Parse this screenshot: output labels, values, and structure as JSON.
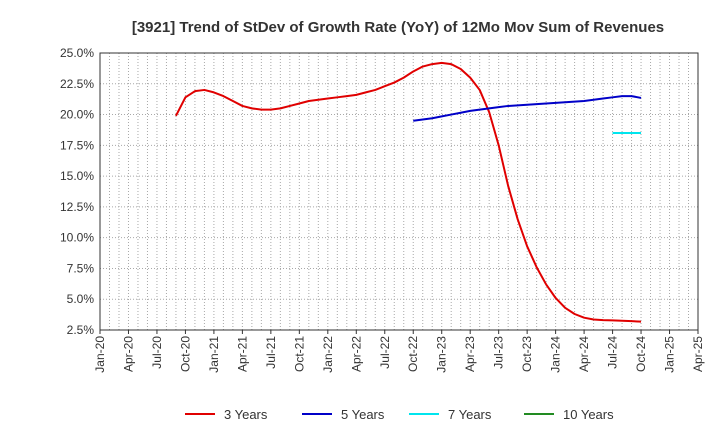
{
  "chart_data": {
    "type": "line",
    "title": "[3921]  Trend of StDev of Growth Rate (YoY) of 12Mo Mov Sum of Revenues",
    "xlabel": "",
    "ylabel": "",
    "ylim": [
      2.5,
      25.0
    ],
    "grid": true,
    "legend_position": "bottom",
    "y_ticks": [
      "2.5%",
      "5.0%",
      "7.5%",
      "10.0%",
      "12.5%",
      "15.0%",
      "17.5%",
      "20.0%",
      "22.5%",
      "25.0%"
    ],
    "x_ticks": [
      "Jan-20",
      "Apr-20",
      "Jul-20",
      "Oct-20",
      "Jan-21",
      "Apr-21",
      "Jul-21",
      "Oct-21",
      "Jan-22",
      "Apr-22",
      "Jul-22",
      "Oct-22",
      "Jan-23",
      "Apr-23",
      "Jul-23",
      "Oct-23",
      "Jan-24",
      "Apr-24",
      "Jul-24",
      "Oct-24",
      "Jan-25",
      "Apr-25"
    ],
    "series": [
      {
        "name": "3 Years",
        "color": "#e00000",
        "points": [
          [
            8,
            19.9
          ],
          [
            9,
            21.4
          ],
          [
            10,
            21.9
          ],
          [
            11,
            22.0
          ],
          [
            12,
            21.8
          ],
          [
            13,
            21.5
          ],
          [
            14,
            21.1
          ],
          [
            15,
            20.7
          ],
          [
            16,
            20.5
          ],
          [
            17,
            20.4
          ],
          [
            18,
            20.4
          ],
          [
            19,
            20.5
          ],
          [
            20,
            20.7
          ],
          [
            21,
            20.9
          ],
          [
            22,
            21.1
          ],
          [
            23,
            21.2
          ],
          [
            24,
            21.3
          ],
          [
            25,
            21.4
          ],
          [
            26,
            21.5
          ],
          [
            27,
            21.6
          ],
          [
            28,
            21.8
          ],
          [
            29,
            22.0
          ],
          [
            30,
            22.3
          ],
          [
            31,
            22.6
          ],
          [
            32,
            23.0
          ],
          [
            33,
            23.5
          ],
          [
            34,
            23.9
          ],
          [
            35,
            24.1
          ],
          [
            36,
            24.2
          ],
          [
            37,
            24.1
          ],
          [
            38,
            23.7
          ],
          [
            39,
            23.0
          ],
          [
            40,
            22.0
          ],
          [
            41,
            20.2
          ],
          [
            42,
            17.5
          ],
          [
            43,
            14.2
          ],
          [
            44,
            11.5
          ],
          [
            45,
            9.3
          ],
          [
            46,
            7.6
          ],
          [
            47,
            6.2
          ],
          [
            48,
            5.1
          ],
          [
            49,
            4.3
          ],
          [
            50,
            3.8
          ],
          [
            51,
            3.5
          ],
          [
            52,
            3.35
          ],
          [
            53,
            3.3
          ],
          [
            54,
            3.28
          ],
          [
            55,
            3.25
          ],
          [
            56,
            3.22
          ],
          [
            57,
            3.18
          ]
        ]
      },
      {
        "name": "5 Years",
        "color": "#0000c8",
        "points": [
          [
            33,
            19.5
          ],
          [
            34,
            19.6
          ],
          [
            35,
            19.7
          ],
          [
            36,
            19.85
          ],
          [
            37,
            20.0
          ],
          [
            38,
            20.15
          ],
          [
            39,
            20.3
          ],
          [
            40,
            20.4
          ],
          [
            41,
            20.5
          ],
          [
            42,
            20.6
          ],
          [
            43,
            20.7
          ],
          [
            44,
            20.75
          ],
          [
            45,
            20.8
          ],
          [
            46,
            20.85
          ],
          [
            47,
            20.9
          ],
          [
            48,
            20.95
          ],
          [
            49,
            21.0
          ],
          [
            50,
            21.05
          ],
          [
            51,
            21.1
          ],
          [
            52,
            21.2
          ],
          [
            53,
            21.3
          ],
          [
            54,
            21.4
          ],
          [
            55,
            21.5
          ],
          [
            56,
            21.5
          ],
          [
            57,
            21.35
          ]
        ]
      },
      {
        "name": "7 Years",
        "color": "#00e5ee",
        "points": [
          [
            54,
            18.5
          ],
          [
            55,
            18.5
          ],
          [
            56,
            18.5
          ],
          [
            57,
            18.5
          ]
        ]
      },
      {
        "name": "10 Years",
        "color": "#228b22",
        "points": []
      }
    ]
  }
}
